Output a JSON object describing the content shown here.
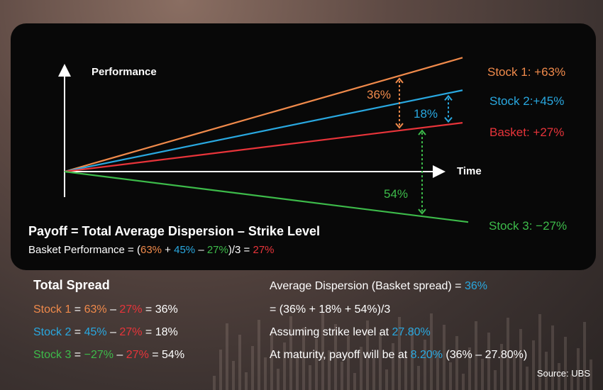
{
  "chart_data": {
    "type": "line",
    "xlabel": "Time",
    "ylabel": "Performance",
    "series": [
      {
        "name": "Stock 1",
        "end_value": 63,
        "label": "Stock 1: +63%",
        "color": "#f08a4b"
      },
      {
        "name": "Stock 2",
        "end_value": 45,
        "label": "Stock 2:+45%",
        "color": "#29a8e0"
      },
      {
        "name": "Basket",
        "end_value": 27,
        "label": "Basket: +27%",
        "color": "#e8343a"
      },
      {
        "name": "Stock 3",
        "end_value": -27,
        "label": "Stock 3: −27%",
        "color": "#3dbb4a"
      }
    ],
    "spreads": [
      {
        "label": "36%",
        "from": "Stock 1",
        "to": "Basket",
        "color": "#f08a4b"
      },
      {
        "label": "18%",
        "from": "Stock 2",
        "to": "Basket",
        "color": "#29a8e0"
      },
      {
        "label": "54%",
        "from": "Basket",
        "to": "Stock 3",
        "color": "#3dbb4a"
      }
    ]
  },
  "formula": {
    "title": "Payoff = Total Average Dispersion – Strike Level",
    "basket_prefix": "Basket Performance = (",
    "v1": "63%",
    "plus1": " + ",
    "v2": "45%",
    "minus1": " – ",
    "v3": "27%",
    "suffix": ")/3 = ",
    "result": "27%"
  },
  "total_spread": {
    "title": "Total Spread",
    "rows": [
      {
        "name": "Stock 1",
        "eq": " = ",
        "a": "63%",
        "op": " – ",
        "b": "27%",
        "res": " = 36%"
      },
      {
        "name": "Stock 2",
        "eq": " = ",
        "a": "45%",
        "op": " – ",
        "b": "27%",
        "res": " = 18%"
      },
      {
        "name": "Stock 3",
        "eq": " = ",
        "a": "−27%",
        "op": " – ",
        "b": "27%",
        "res": " = 54%"
      }
    ]
  },
  "dispersion": {
    "line1_prefix": "Average Dispersion (Basket spread) = ",
    "line1_value": "36%",
    "line2": "= (36% + 18% + 54%)/3",
    "line3_prefix": "Assuming strike level at ",
    "line3_value": "27.80%",
    "line4_prefix": "At maturity, payoff will be at ",
    "line4_value": "8.20%",
    "line4_suffix": " (36% – 27.80%)"
  },
  "source": "Source: UBS"
}
